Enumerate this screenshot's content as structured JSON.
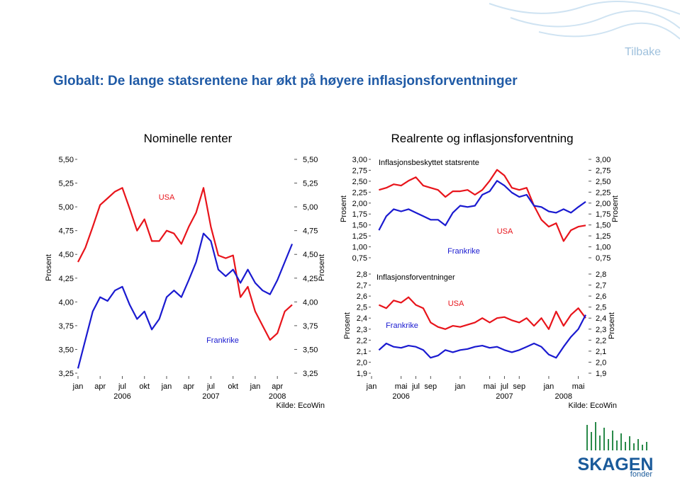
{
  "header": {
    "back": "Tilbake",
    "title": "Globalt: De lange statsrentene har økt på høyere inflasjonsforventninger"
  },
  "logo": {
    "name": "SKAGEN",
    "sub": "fonder"
  },
  "chart_data": [
    {
      "type": "line",
      "title": "Nominelle renter",
      "y_label": "Prosent",
      "y2_label": "Prosent",
      "source": "Kilde: EcoWin",
      "x": [
        "2006-01",
        "2006-02",
        "2006-03",
        "2006-04",
        "2006-05",
        "2006-06",
        "2006-07",
        "2006-08",
        "2006-09",
        "2006-10",
        "2006-11",
        "2006-12",
        "2007-01",
        "2007-02",
        "2007-03",
        "2007-04",
        "2007-05",
        "2007-06",
        "2007-07",
        "2007-08",
        "2007-09",
        "2007-10",
        "2007-11",
        "2007-12",
        "2008-01",
        "2008-02",
        "2008-03",
        "2008-04",
        "2008-05",
        "2008-06"
      ],
      "xlim": [
        "2006-01",
        "2008-06"
      ],
      "xticks": [
        {
          "value": "2006-01",
          "label": "jan"
        },
        {
          "value": "2006-04",
          "label": "apr"
        },
        {
          "value": "2006-07",
          "label": "jul"
        },
        {
          "value": "2006-10",
          "label": "okt"
        },
        {
          "value": "2007-01",
          "label": "jan"
        },
        {
          "value": "2007-04",
          "label": "apr"
        },
        {
          "value": "2007-07",
          "label": "jul"
        },
        {
          "value": "2007-10",
          "label": "okt"
        },
        {
          "value": "2008-01",
          "label": "jan"
        },
        {
          "value": "2008-04",
          "label": "apr"
        }
      ],
      "year_labels": [
        {
          "value": "2006-07",
          "label": "2006"
        },
        {
          "value": "2007-07",
          "label": "2007"
        },
        {
          "value": "2008-04",
          "label": "2008"
        }
      ],
      "ylim": [
        3.25,
        5.5
      ],
      "yticks": [
        {
          "value": 5.5,
          "label": "5,50"
        },
        {
          "value": 5.25,
          "label": "5,25"
        },
        {
          "value": 5,
          "label": "5,00"
        },
        {
          "value": 4.75,
          "label": "4,75"
        },
        {
          "value": 4.5,
          "label": "4,50"
        },
        {
          "value": 4.25,
          "label": "4,25"
        },
        {
          "value": 4,
          "label": "4,00"
        },
        {
          "value": 3.75,
          "label": "3,75"
        },
        {
          "value": 3.5,
          "label": "3,50"
        },
        {
          "value": 3.25,
          "label": "3,25"
        }
      ],
      "y2lim": [
        3.25,
        5.5
      ],
      "y2ticks": [
        {
          "value": 5.5,
          "label": "5,50"
        },
        {
          "value": 5.25,
          "label": "5,25"
        },
        {
          "value": 5,
          "label": "5,00"
        },
        {
          "value": 4.75,
          "label": "4,75"
        },
        {
          "value": 4.5,
          "label": "4,50"
        },
        {
          "value": 4.25,
          "label": "4,25"
        },
        {
          "value": 4,
          "label": "4,00"
        },
        {
          "value": 3.75,
          "label": "3,75"
        },
        {
          "value": 3.5,
          "label": "3,50"
        },
        {
          "value": 3.25,
          "label": "3,25"
        }
      ],
      "series": [
        {
          "name": "USA",
          "color": "#e8141b",
          "values": [
            4.42,
            4.57,
            4.79,
            5.02,
            5.09,
            5.16,
            5.2,
            4.98,
            4.75,
            4.87,
            4.64,
            4.64,
            4.75,
            4.72,
            4.61,
            4.79,
            4.94,
            5.2,
            4.79,
            4.49,
            4.46,
            4.49,
            4.05,
            4.16,
            3.9,
            3.75,
            3.6,
            3.67,
            3.9,
            3.97
          ]
        },
        {
          "name": "Frankrike",
          "color": "#1a1ad0",
          "values": [
            3.3,
            3.6,
            3.9,
            4.05,
            4.01,
            4.12,
            4.16,
            3.97,
            3.82,
            3.9,
            3.71,
            3.82,
            4.05,
            4.12,
            4.05,
            4.23,
            4.42,
            4.72,
            4.64,
            4.34,
            4.27,
            4.34,
            4.2,
            4.34,
            4.2,
            4.12,
            4.08,
            4.23,
            4.42,
            4.61
          ]
        }
      ]
    },
    {
      "type": "line",
      "title": "Realrente og inflasjonsforventning",
      "panel_title": "Inflasjonsbeskyttet statsrente",
      "y_label": "Prosent",
      "y2_label": "Prosent",
      "x": [
        "2006-02",
        "2006-03",
        "2006-04",
        "2006-05",
        "2006-06",
        "2006-07",
        "2006-08",
        "2006-09",
        "2006-10",
        "2006-11",
        "2006-12",
        "2007-01",
        "2007-02",
        "2007-03",
        "2007-04",
        "2007-05",
        "2007-06",
        "2007-07",
        "2007-08",
        "2007-09",
        "2007-10",
        "2007-11",
        "2007-12",
        "2008-01",
        "2008-02",
        "2008-03",
        "2008-04",
        "2008-05",
        "2008-06"
      ],
      "xlim": [
        "2006-01",
        "2008-06"
      ],
      "ylim": [
        0.75,
        3
      ],
      "yticks": [
        {
          "value": 3,
          "label": "3,00"
        },
        {
          "value": 2.75,
          "label": "2,75"
        },
        {
          "value": 2.5,
          "label": "2,50"
        },
        {
          "value": 2.25,
          "label": "2,25"
        },
        {
          "value": 2,
          "label": "2,00"
        },
        {
          "value": 1.75,
          "label": "1,75"
        },
        {
          "value": 1.5,
          "label": "1,50"
        },
        {
          "value": 1.25,
          "label": "1,25"
        },
        {
          "value": 1,
          "label": "1,00"
        },
        {
          "value": 0.75,
          "label": "0,75"
        }
      ],
      "y2lim": [
        0.75,
        3
      ],
      "y2ticks": [
        {
          "value": 3,
          "label": "3,00"
        },
        {
          "value": 2.75,
          "label": "2,75"
        },
        {
          "value": 2.5,
          "label": "2,50"
        },
        {
          "value": 2.25,
          "label": "2,25"
        },
        {
          "value": 2,
          "label": "2,00"
        },
        {
          "value": 1.75,
          "label": "1,75"
        },
        {
          "value": 1.5,
          "label": "1,50"
        },
        {
          "value": 1.25,
          "label": "1,25"
        },
        {
          "value": 1,
          "label": "1,00"
        },
        {
          "value": 0.75,
          "label": "0,75"
        }
      ],
      "series": [
        {
          "name": "USA",
          "color": "#e8141b",
          "values": [
            2.3,
            2.35,
            2.43,
            2.4,
            2.51,
            2.59,
            2.4,
            2.35,
            2.3,
            2.14,
            2.27,
            2.27,
            2.3,
            2.19,
            2.3,
            2.51,
            2.76,
            2.63,
            2.35,
            2.3,
            2.35,
            1.94,
            1.62,
            1.46,
            1.54,
            1.13,
            1.38,
            1.46,
            1.49
          ]
        },
        {
          "name": "Frankrike",
          "color": "#1a1ad0",
          "values": [
            1.38,
            1.7,
            1.86,
            1.81,
            1.86,
            1.78,
            1.7,
            1.62,
            1.62,
            1.49,
            1.78,
            1.94,
            1.91,
            1.94,
            2.19,
            2.27,
            2.51,
            2.4,
            2.24,
            2.14,
            2.19,
            1.94,
            1.91,
            1.81,
            1.78,
            1.86,
            1.78,
            1.91,
            2.03
          ]
        }
      ]
    },
    {
      "type": "line",
      "panel_title": "Inflasjonsforventninger",
      "y_label": "Prosent",
      "y2_label": "Prosent",
      "source": "Kilde: EcoWin",
      "x": [
        "2006-02",
        "2006-03",
        "2006-04",
        "2006-05",
        "2006-06",
        "2006-07",
        "2006-08",
        "2006-09",
        "2006-10",
        "2006-11",
        "2006-12",
        "2007-01",
        "2007-02",
        "2007-03",
        "2007-04",
        "2007-05",
        "2007-06",
        "2007-07",
        "2007-08",
        "2007-09",
        "2007-10",
        "2007-11",
        "2007-12",
        "2008-01",
        "2008-02",
        "2008-03",
        "2008-04",
        "2008-05",
        "2008-06"
      ],
      "xlim": [
        "2006-01",
        "2008-06"
      ],
      "xticks": [
        {
          "value": "2006-01",
          "label": "jan"
        },
        {
          "value": "2006-05",
          "label": "mai"
        },
        {
          "value": "2006-07",
          "label": "jul"
        },
        {
          "value": "2006-09",
          "label": "sep"
        },
        {
          "value": "2007-01",
          "label": "jan"
        },
        {
          "value": "2007-05",
          "label": "mai"
        },
        {
          "value": "2007-07",
          "label": "jul"
        },
        {
          "value": "2007-09",
          "label": "sep"
        },
        {
          "value": "2008-01",
          "label": "jan"
        },
        {
          "value": "2008-05",
          "label": "mai"
        }
      ],
      "year_labels": [
        {
          "value": "2006-05",
          "label": "2006"
        },
        {
          "value": "2007-07",
          "label": "2007"
        },
        {
          "value": "2008-03",
          "label": "2008"
        }
      ],
      "ylim": [
        1.9,
        2.8
      ],
      "yticks": [
        {
          "value": 2.8,
          "label": "2,8"
        },
        {
          "value": 2.7,
          "label": "2,7"
        },
        {
          "value": 2.6,
          "label": "2,6"
        },
        {
          "value": 2.5,
          "label": "2,5"
        },
        {
          "value": 2.4,
          "label": "2,4"
        },
        {
          "value": 2.3,
          "label": "2,3"
        },
        {
          "value": 2.2,
          "label": "2,2"
        },
        {
          "value": 2.1,
          "label": "2,1"
        },
        {
          "value": 2,
          "label": "2,0"
        },
        {
          "value": 1.9,
          "label": "1,9"
        }
      ],
      "y2lim": [
        1.9,
        2.8
      ],
      "y2ticks": [
        {
          "value": 2.8,
          "label": "2,8"
        },
        {
          "value": 2.7,
          "label": "2,7"
        },
        {
          "value": 2.6,
          "label": "2,6"
        },
        {
          "value": 2.5,
          "label": "2,5"
        },
        {
          "value": 2.4,
          "label": "2,4"
        },
        {
          "value": 2.3,
          "label": "2,3"
        },
        {
          "value": 2.2,
          "label": "2,2"
        },
        {
          "value": 2.1,
          "label": "2,1"
        },
        {
          "value": 2,
          "label": "2,0"
        },
        {
          "value": 1.9,
          "label": "1,9"
        }
      ],
      "series": [
        {
          "name": "USA",
          "color": "#e8141b",
          "values": [
            2.52,
            2.49,
            2.56,
            2.54,
            2.59,
            2.52,
            2.49,
            2.36,
            2.32,
            2.3,
            2.33,
            2.32,
            2.34,
            2.36,
            2.4,
            2.36,
            2.4,
            2.41,
            2.38,
            2.36,
            2.4,
            2.33,
            2.4,
            2.3,
            2.46,
            2.33,
            2.43,
            2.49,
            2.4
          ]
        },
        {
          "name": "Frankrike",
          "color": "#1a1ad0",
          "values": [
            2.11,
            2.17,
            2.14,
            2.13,
            2.15,
            2.14,
            2.11,
            2.04,
            2.06,
            2.11,
            2.09,
            2.11,
            2.12,
            2.14,
            2.15,
            2.13,
            2.14,
            2.11,
            2.09,
            2.11,
            2.14,
            2.17,
            2.14,
            2.07,
            2.04,
            2.14,
            2.23,
            2.3,
            2.43
          ]
        }
      ]
    }
  ]
}
